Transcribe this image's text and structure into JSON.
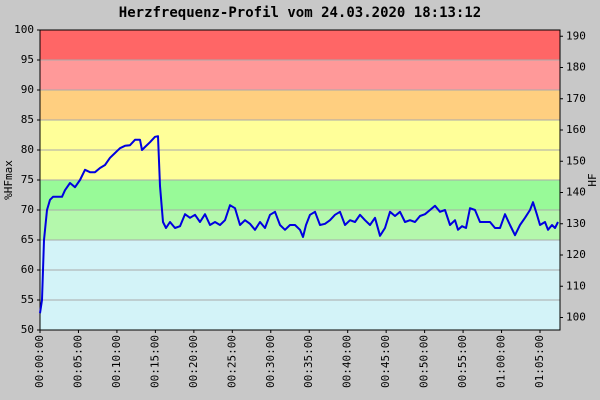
{
  "chart_data": {
    "type": "line",
    "title": "Herzfrequenz-Profil vom 24.03.2020 18:13:12",
    "ylabel": "%HFmax",
    "y2label": "HF",
    "color": "#0000e0",
    "x": [
      0,
      0.26,
      0.52,
      0.91,
      1.3,
      1.69,
      2.86,
      3.25,
      3.9,
      4.55,
      5.2,
      5.85,
      6.5,
      7.15,
      7.8,
      8.45,
      9.1,
      9.75,
      10.4,
      11.05,
      11.7,
      12.35,
      13,
      13.26,
      13.65,
      14.3,
      14.95,
      15.34,
      15.6,
      15.99,
      16.38,
      16.9,
      17.55,
      18.2,
      18.85,
      19.5,
      20.15,
      20.8,
      21.45,
      22.1,
      22.75,
      23.4,
      24.05,
      24.7,
      25.35,
      26,
      26.65,
      27.3,
      27.95,
      28.6,
      29.25,
      29.9,
      30.55,
      31.2,
      31.85,
      32.5,
      33.15,
      33.8,
      34.19,
      34.58,
      35.1,
      35.75,
      36.4,
      37.05,
      37.7,
      38.35,
      39,
      39.65,
      40.3,
      40.95,
      41.6,
      42.25,
      42.9,
      43.55,
      44.2,
      44.85,
      45.5,
      46.15,
      46.8,
      47.45,
      48.1,
      48.75,
      49.4,
      50.05,
      50.7,
      51.35,
      52,
      52.65,
      53.3,
      53.95,
      54.34,
      54.86,
      55.38,
      55.9,
      56.55,
      57.2,
      57.85,
      58.5,
      59.15,
      59.8,
      60.45,
      61.1,
      61.75,
      62.4,
      63.05,
      63.7,
      64.09,
      64.61,
      65,
      65.65,
      66.04,
      66.56,
      66.95,
      67.34
    ],
    "values": [
      52.8,
      55,
      65,
      70,
      71.7,
      72.2,
      72.2,
      73.3,
      74.5,
      73.8,
      75,
      76.7,
      76.3,
      76.3,
      77,
      77.5,
      78.7,
      79.5,
      80.3,
      80.7,
      80.8,
      81.7,
      81.7,
      80,
      80.5,
      81.3,
      82.2,
      82.3,
      74,
      68,
      67,
      68,
      67,
      67.3,
      69.3,
      68.7,
      69.2,
      68,
      69.3,
      67.5,
      68,
      67.5,
      68.3,
      70.8,
      70.3,
      67.5,
      68.3,
      67.7,
      66.7,
      68,
      67,
      69.2,
      69.7,
      67.5,
      66.7,
      67.5,
      67.5,
      66.7,
      65.5,
      67.5,
      69.2,
      69.7,
      67.5,
      67.7,
      68.3,
      69.2,
      69.7,
      67.5,
      68.3,
      68,
      69.2,
      68.3,
      67.5,
      68.7,
      65.7,
      67,
      69.7,
      69,
      69.7,
      68,
      68.3,
      68,
      69,
      69.3,
      70,
      70.7,
      69.7,
      70,
      67.5,
      68.3,
      66.7,
      67.3,
      67,
      70.3,
      70,
      68,
      68,
      68,
      67,
      67,
      69.3,
      67.5,
      65.8,
      67.5,
      68.7,
      70,
      71.3,
      69.2,
      67.5,
      68,
      66.7,
      67.5,
      67,
      68
    ],
    "xlim": [
      0,
      67.6
    ],
    "xticks": [
      {
        "value": 0,
        "label": "00:00:00"
      },
      {
        "value": 5,
        "label": "00:05:00"
      },
      {
        "value": 10,
        "label": "00:10:00"
      },
      {
        "value": 15,
        "label": "00:15:00"
      },
      {
        "value": 20,
        "label": "00:20:00"
      },
      {
        "value": 25,
        "label": "00:25:00"
      },
      {
        "value": 30,
        "label": "00:30:00"
      },
      {
        "value": 35,
        "label": "00:35:00"
      },
      {
        "value": 40,
        "label": "00:40:00"
      },
      {
        "value": 45,
        "label": "00:45:00"
      },
      {
        "value": 50,
        "label": "00:50:00"
      },
      {
        "value": 55,
        "label": "00:55:00"
      },
      {
        "value": 60,
        "label": "01:00:00"
      },
      {
        "value": 65,
        "label": "01:05:00"
      }
    ],
    "ylim": [
      50,
      100
    ],
    "yticks": [
      50,
      55,
      60,
      65,
      70,
      75,
      80,
      85,
      90,
      95,
      100
    ],
    "y2lim": [
      96,
      192
    ],
    "y2ticks": [
      100,
      110,
      120,
      130,
      140,
      150,
      160,
      170,
      180,
      190
    ],
    "grid": true,
    "zones": [
      {
        "from": 50,
        "to": 65,
        "color": "#d3f3f8"
      },
      {
        "from": 65,
        "to": 70,
        "color": "#b4f8ac"
      },
      {
        "from": 70,
        "to": 75,
        "color": "#98fa98"
      },
      {
        "from": 75,
        "to": 85,
        "color": "#ffff99"
      },
      {
        "from": 85,
        "to": 90,
        "color": "#ffcf80"
      },
      {
        "from": 90,
        "to": 95,
        "color": "#ff9999"
      },
      {
        "from": 95,
        "to": 100,
        "color": "#ff6666"
      }
    ]
  }
}
